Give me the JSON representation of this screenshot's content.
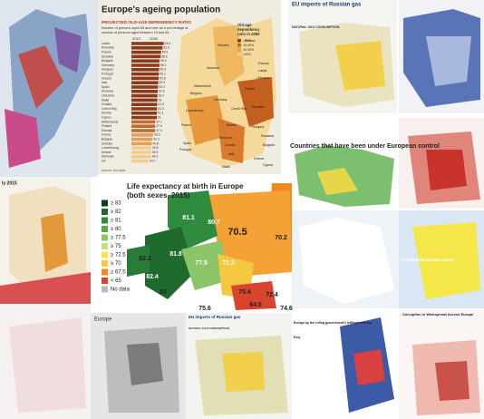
{
  "ageing": {
    "title": "Europe's ageing population",
    "subtitle": "PROJECTED OLD-AGE DEPENDENCY RATIO",
    "note": [
      "Number of persons aged 65 and over as a percentage of",
      "number of persons aged between 15 and 64"
    ],
    "years": [
      "2015",
      "2060"
    ],
    "rows": [
      {
        "country": "Latvia",
        "value": 64.6
      },
      {
        "country": "Romania",
        "value": 62.3
      },
      {
        "country": "Poland",
        "value": 59.5
      },
      {
        "country": "Slovakia",
        "value": 58.6
      },
      {
        "country": "Bulgaria",
        "value": 56.3
      },
      {
        "country": "Germany",
        "value": 56.1
      },
      {
        "country": "Hungary",
        "value": 55.5
      },
      {
        "country": "Portugal",
        "value": 55.1
      },
      {
        "country": "Greece",
        "value": 54.8
      },
      {
        "country": "Italy",
        "value": 53.9
      },
      {
        "country": "Spain",
        "value": 53.3
      },
      {
        "country": "Slovenia",
        "value": 52.6
      },
      {
        "country": "Lithuania",
        "value": 52.2
      },
      {
        "country": "Malta",
        "value": 52.0
      },
      {
        "country": "Croatia",
        "value": 51.6
      },
      {
        "country": "Czech Rep.",
        "value": 51.3
      },
      {
        "country": "Austria",
        "value": 51.1
      },
      {
        "country": "Cyprus",
        "value": 51.0
      },
      {
        "country": "Netherlands",
        "value": 47.7
      },
      {
        "country": "Finland",
        "value": 47.4
      },
      {
        "country": "Estonia",
        "value": 47.3
      },
      {
        "country": "France",
        "value": 43.6
      },
      {
        "country": "Belgium",
        "value": 42.3
      },
      {
        "country": "Sweden",
        "value": 40.8
      },
      {
        "country": "Luxembourg",
        "value": 39.8
      },
      {
        "country": "Ireland",
        "value": 39.5
      },
      {
        "country": "Denmark",
        "value": 39.3
      },
      {
        "country": "UK",
        "value": 34.7
      }
    ],
    "legend_title": [
      "Old-age",
      "dependency",
      "ratio in 2060"
    ],
    "legend": [
      ">50%",
      "45-50%",
      "40-45%",
      "<40%"
    ],
    "map_labels": [
      "Sweden",
      "Finland",
      "Estonia",
      "Latvia",
      "Lithuania",
      "Denmark",
      "Netherlands",
      "Belgium",
      "Poland",
      "Germany",
      "Czech Rep.",
      "Slovakia",
      "Luxembourg",
      "France",
      "Austria",
      "Hungary",
      "Romania",
      "Slovenia",
      "Croatia",
      "Bulgaria",
      "Portugal",
      "Spain",
      "Italy",
      "Greece",
      "Malta",
      "Cyprus"
    ],
    "source": "Source: Eurostat"
  },
  "life": {
    "title": [
      "Life expectancy at birth in Europe",
      "(both sexes, 2015)"
    ],
    "legend": [
      "≥ 83",
      "≥ 82",
      "≥ 81",
      "≥ 80",
      "≥ 77.5",
      "≥ 75",
      "≥ 72.5",
      "≥ 70",
      "≥ 67.5",
      "< 65",
      "No data"
    ],
    "map_values": [
      "70.5",
      "70.2",
      "81.1",
      "80.7",
      "82.4",
      "81.8",
      "77.5",
      "71.3",
      "75.4",
      "74.6",
      "64.5",
      "72.4",
      "75.6",
      "82.2",
      "83"
    ]
  },
  "gas_top": {
    "title": "EU imports of Russian gas",
    "section": "NATURAL GAS CONSUMPTION"
  },
  "control": {
    "title": "Countries that have been under European control"
  },
  "small_left": {
    "label": "ly 2015"
  },
  "potential": {
    "title": "Potential EU leaving names"
  },
  "europe": {
    "title": "Europe"
  },
  "gas_bottom": {
    "title": "EU imports of Russian gas",
    "section": "NATURAL GAS CONSUMPTION"
  },
  "ruling": {
    "title": "Europe by the ruling government's left/right leaning",
    "key": "Key"
  },
  "corruption": {
    "title": "Corruption is Widespread Across Europe"
  }
}
